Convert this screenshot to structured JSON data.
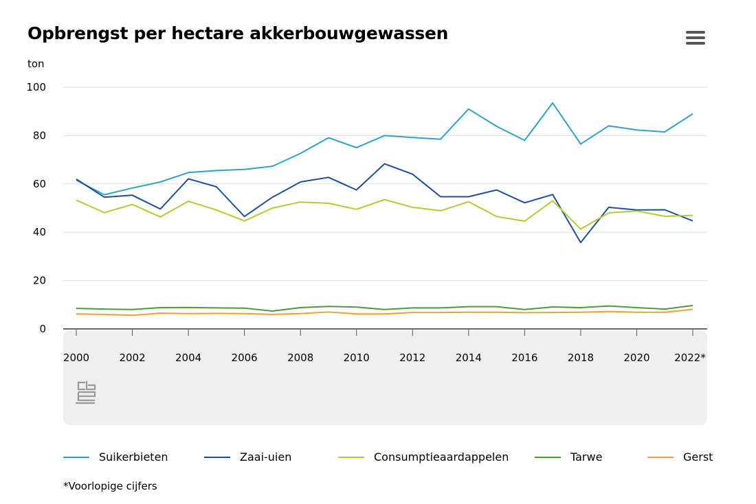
{
  "title": "Opbrengst per hectare akkerbouwgewassen",
  "unit_label": "ton",
  "footnote": "*Voorlopige cijfers",
  "menu_icon": "hamburger-menu-icon",
  "logo_icon": "cbs-logo-icon",
  "chart_data": {
    "type": "line",
    "title": "Opbrengst per hectare akkerbouwgewassen",
    "ylabel": "ton",
    "xlabel": "",
    "ylim": [
      0,
      100
    ],
    "yticks": [
      0,
      20,
      40,
      60,
      80,
      100
    ],
    "x": [
      2000,
      2001,
      2002,
      2003,
      2004,
      2005,
      2006,
      2007,
      2008,
      2009,
      2010,
      2011,
      2012,
      2013,
      2014,
      2015,
      2016,
      2017,
      2018,
      2019,
      2020,
      2021,
      2022
    ],
    "xtick_labels": [
      "2000",
      "2002",
      "2004",
      "2006",
      "2008",
      "2010",
      "2012",
      "2014",
      "2016",
      "2018",
      "2020",
      "2022*"
    ],
    "grid": true,
    "legend_position": "bottom",
    "series": [
      {
        "name": "Suikerbieten",
        "color": "#2aa3c4",
        "values": [
          61.5,
          55.5,
          58.3,
          60.8,
          64.7,
          65.5,
          66.0,
          67.3,
          72.6,
          79.1,
          75.0,
          80.0,
          79.2,
          78.5,
          91.0,
          83.8,
          78.0,
          93.5,
          76.5,
          84.0,
          82.3,
          81.5,
          89.0
        ]
      },
      {
        "name": "Zaai-uien",
        "color": "#1d4e9c",
        "values": [
          62.0,
          54.5,
          55.3,
          49.6,
          62.1,
          58.8,
          46.5,
          54.5,
          60.8,
          62.7,
          57.5,
          68.3,
          64.0,
          54.7,
          54.7,
          57.5,
          52.2,
          55.6,
          35.7,
          50.3,
          49.2,
          49.3,
          44.7
        ]
      },
      {
        "name": "Consumptieaardappelen",
        "color": "#b3cc2b",
        "values": [
          53.3,
          48.1,
          51.5,
          46.3,
          52.8,
          49.2,
          44.7,
          50.0,
          52.5,
          52.0,
          49.5,
          53.5,
          50.3,
          48.9,
          52.6,
          46.5,
          44.6,
          53.0,
          41.3,
          48.0,
          48.8,
          46.6,
          47.0
        ]
      },
      {
        "name": "Tarwe",
        "color": "#4f9a38",
        "values": [
          8.5,
          8.2,
          8.0,
          8.8,
          8.9,
          8.7,
          8.6,
          7.4,
          8.8,
          9.3,
          9.0,
          8.0,
          8.7,
          8.7,
          9.2,
          9.2,
          8.0,
          9.1,
          8.8,
          9.5,
          8.8,
          8.2,
          9.7
        ]
      },
      {
        "name": "Gerst",
        "color": "#f0a030",
        "values": [
          6.2,
          6.0,
          5.6,
          6.5,
          6.3,
          6.4,
          6.3,
          6.0,
          6.3,
          7.0,
          6.2,
          6.2,
          6.8,
          6.8,
          6.9,
          6.9,
          6.7,
          6.8,
          6.9,
          7.2,
          6.9,
          6.9,
          8.1
        ]
      }
    ]
  }
}
